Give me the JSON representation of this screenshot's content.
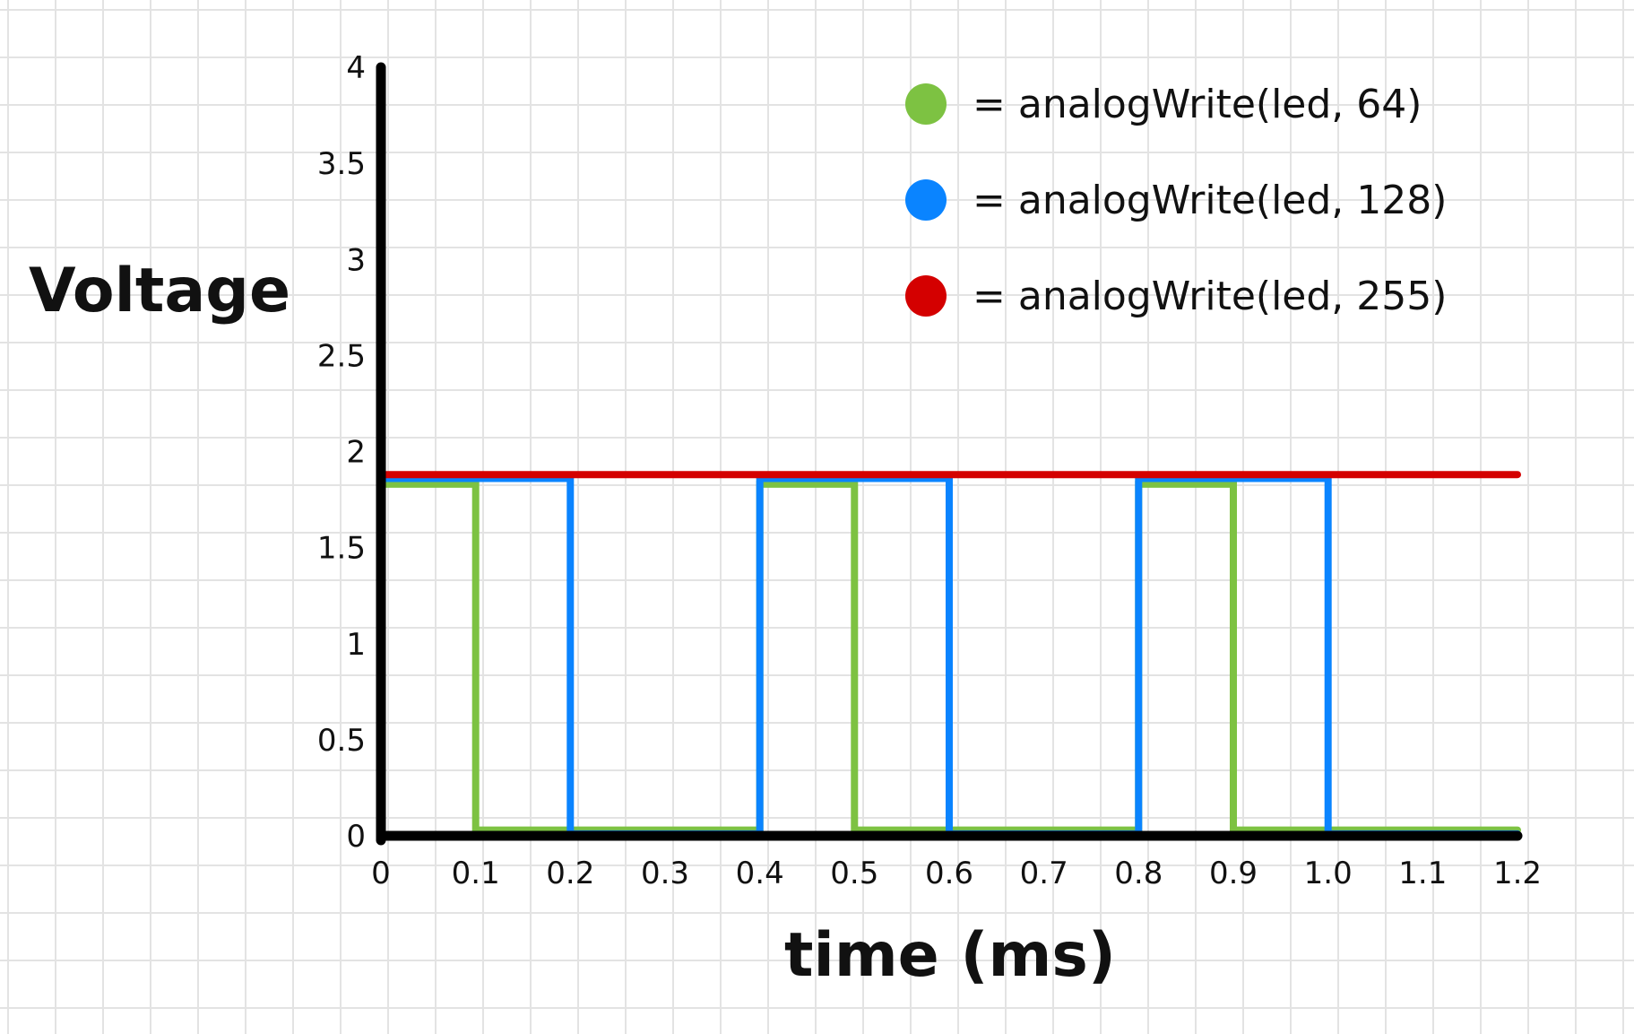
{
  "chart_data": {
    "type": "line",
    "ylabel": "Voltage",
    "xlabel": "time (ms)",
    "ylim": [
      0,
      4
    ],
    "xlim": [
      0,
      1.2
    ],
    "grid": true,
    "legend_position": "top-right",
    "y_ticks": [
      "0",
      "0.5",
      "1",
      "1.5",
      "2",
      "2.5",
      "3",
      "3.5",
      "4"
    ],
    "x_ticks": [
      "0",
      "0.1",
      "0.2",
      "0.3",
      "0.4",
      "0.5",
      "0.6",
      "0.7",
      "0.8",
      "0.9",
      "1.0",
      "1.1",
      "1.2"
    ],
    "series": [
      {
        "name": "= analogWrite(led, 64)",
        "color": "#7dc242",
        "x": [
          0,
          0.1,
          0.1,
          0.4,
          0.4,
          0.5,
          0.5,
          0.8,
          0.8,
          0.9,
          0.9,
          1.2
        ],
        "y": [
          1.83,
          1.83,
          0.03,
          0.03,
          1.83,
          1.83,
          0.03,
          0.03,
          1.83,
          1.83,
          0.03,
          0.03
        ]
      },
      {
        "name": "= analogWrite(led, 128)",
        "color": "#0a84ff",
        "x": [
          0,
          0.2,
          0.2,
          0.4,
          0.4,
          0.6,
          0.6,
          0.8,
          0.8,
          1.0,
          1.0,
          1.2
        ],
        "y": [
          1.86,
          1.86,
          0.01,
          0.01,
          1.86,
          1.86,
          0.01,
          0.01,
          1.86,
          1.86,
          0.01,
          0.01
        ]
      },
      {
        "name": "= analogWrite(led, 255)",
        "color": "#d40000",
        "x": [
          0,
          1.2
        ],
        "y": [
          1.88,
          1.88
        ]
      }
    ]
  }
}
